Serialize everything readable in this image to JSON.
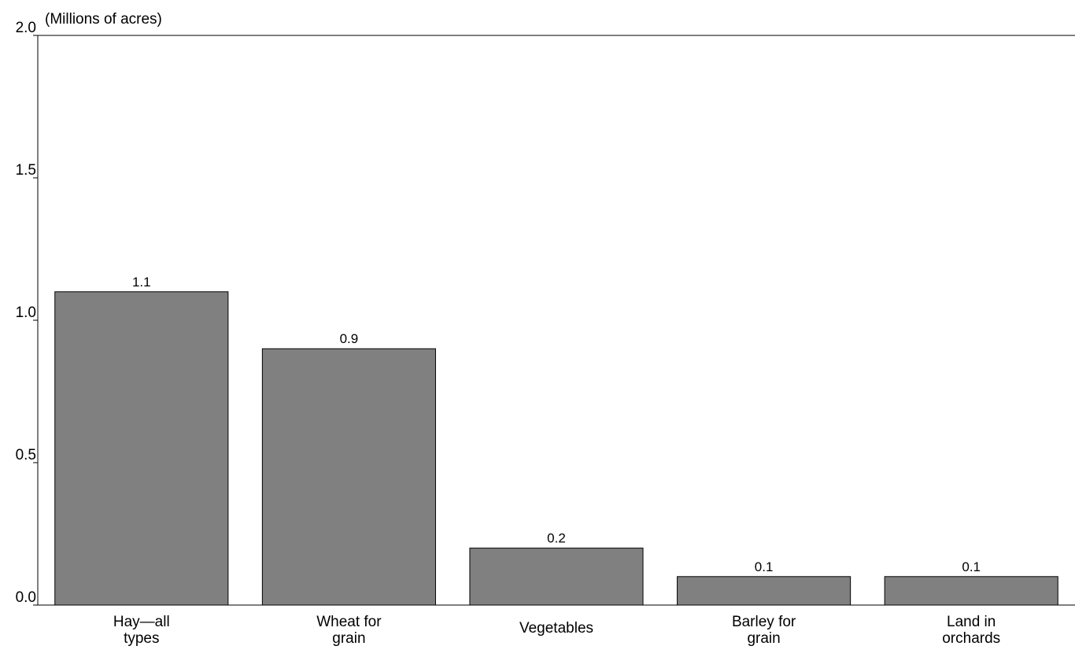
{
  "chart_data": {
    "type": "bar",
    "title": "",
    "xlabel": "",
    "ylabel": "(Millions of acres)",
    "categories": [
      [
        "Hay—all",
        "types"
      ],
      [
        "Wheat for",
        "grain"
      ],
      [
        "Vegetables"
      ],
      [
        "Barley for",
        "grain"
      ],
      [
        "Land in",
        "orchards"
      ]
    ],
    "values": [
      1.1,
      0.9,
      0.2,
      0.1,
      0.1
    ],
    "data_labels": [
      "1.1",
      "0.9",
      "0.2",
      "0.1",
      "0.1"
    ],
    "ylim": [
      0,
      2.0
    ],
    "yticks": [
      0.0,
      0.5,
      1.0,
      1.5,
      2.0
    ],
    "ytick_labels": [
      "0.0",
      "0.5",
      "1.0",
      "1.5",
      "2.0"
    ],
    "grid": false,
    "legend": "none",
    "bar_color": "#808080",
    "bar_edge_color": "#000000"
  }
}
